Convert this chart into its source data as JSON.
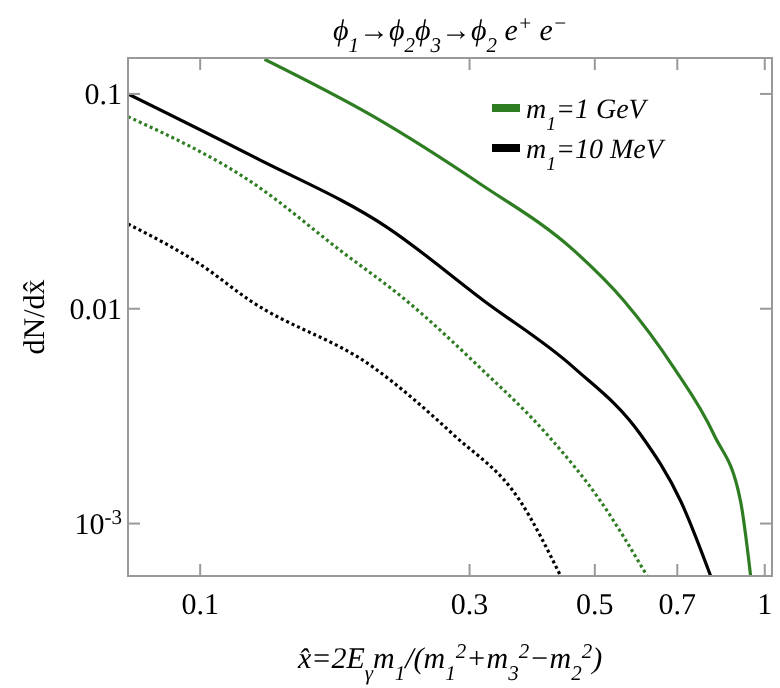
{
  "chart_data": {
    "type": "line",
    "title": "ϕ$_{1}$→ϕ$_{2}$ϕ$_{3}$→ϕ$_{2}$ e$^{+}$ e$^{−}$",
    "xlabel": "x̂=2E$_{γ}$m$_{1}$/(m$_{1}$$^{2}$+m$_{3}$$^{2}$−m$_{2}$$^{2}$)",
    "ylabel": "dN/dx̂",
    "log": "xy",
    "grid": false,
    "legend": "top right",
    "xlim": [
      0.0745,
      1.03
    ],
    "ylim": [
      0.00057,
      0.147
    ],
    "xticks": [
      0.1,
      0.3,
      0.5,
      0.7,
      1
    ],
    "yticks": [
      0.1,
      0.01,
      {
        "value": 0.001,
        "label": "10$^{-3}$"
      }
    ],
    "series": [
      {
        "name": "m$_{1}$=1 GeV",
        "color": "#2e7d22",
        "line_style": "solid",
        "x": [
          0.13,
          0.203,
          0.313,
          0.459,
          0.563,
          0.69,
          0.813,
          0.906,
          0.944
        ],
        "values": [
          0.145,
          0.0784,
          0.0382,
          0.0187,
          0.0109,
          0.00532,
          0.00259,
          0.00127,
          0.00057
        ]
      },
      {
        "name": "m$_{1}$=10 MeV",
        "color": "#000000",
        "line_style": "solid",
        "x": [
          0.0745,
          0.1245,
          0.214,
          0.318,
          0.459,
          0.603,
          0.71,
          0.802
        ],
        "values": [
          0.1,
          0.0509,
          0.024,
          0.0109,
          0.00532,
          0.00259,
          0.00127,
          0.00057
        ]
      },
      {
        "color": "#2e7d22",
        "line_style": "dotted",
        "x": [
          0.0745,
          0.1245,
          0.177,
          0.232,
          0.313,
          0.412,
          0.512,
          0.619
        ],
        "values": [
          0.0784,
          0.0382,
          0.0187,
          0.0109,
          0.00532,
          0.00259,
          0.00127,
          0.00057
        ]
      },
      {
        "color": "#000000",
        "line_style": "dotted",
        "x": [
          0.0745,
          0.1,
          0.1227,
          0.203,
          0.281,
          0.369,
          0.435
        ],
        "values": [
          0.0248,
          0.0161,
          0.0109,
          0.00532,
          0.00259,
          0.00127,
          0.00057
        ]
      }
    ]
  }
}
